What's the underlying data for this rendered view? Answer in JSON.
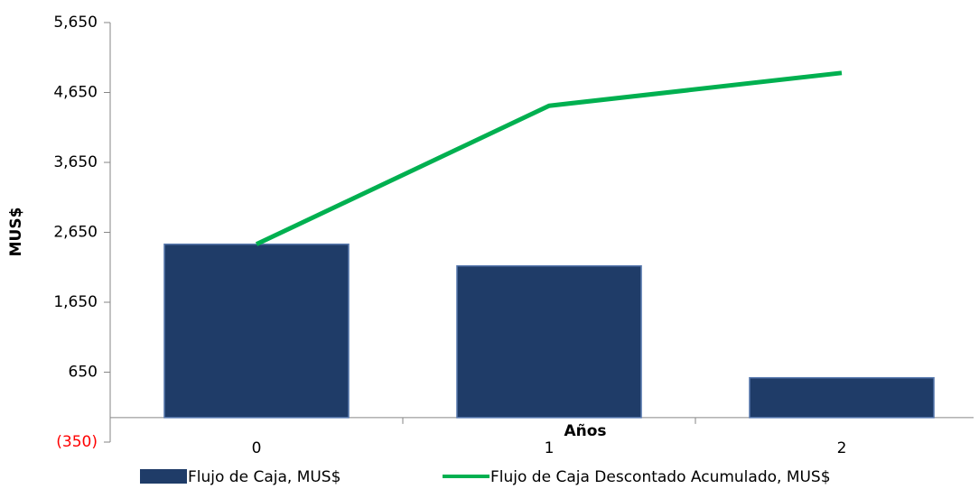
{
  "chart_data": {
    "type": "bar",
    "categories": [
      "0",
      "1",
      "2"
    ],
    "series": [
      {
        "name": "Flujo de Caja, MUS$",
        "type": "bar",
        "color": "#1f3c68",
        "values": [
          2480,
          2170,
          570
        ]
      },
      {
        "name": "Flujo de Caja Descontado Acumulado, MUS$",
        "type": "line",
        "color": "#00b050",
        "values": [
          2480,
          4460,
          4930
        ]
      }
    ],
    "xlabel": "Años",
    "ylabel": "MUS$",
    "ylim": [
      -350,
      5650
    ],
    "yticks": [
      {
        "value": -350,
        "label": "(350)"
      },
      650,
      {
        "value": 1650,
        "label": "1,650"
      },
      {
        "value": 2650,
        "label": "2,650"
      },
      {
        "value": 3650,
        "label": "3,650"
      },
      {
        "value": 4650,
        "label": "4,650"
      },
      {
        "value": 5650,
        "label": "5,650"
      }
    ],
    "negative_tick_color": "#ff0000",
    "legend": "bottom"
  }
}
